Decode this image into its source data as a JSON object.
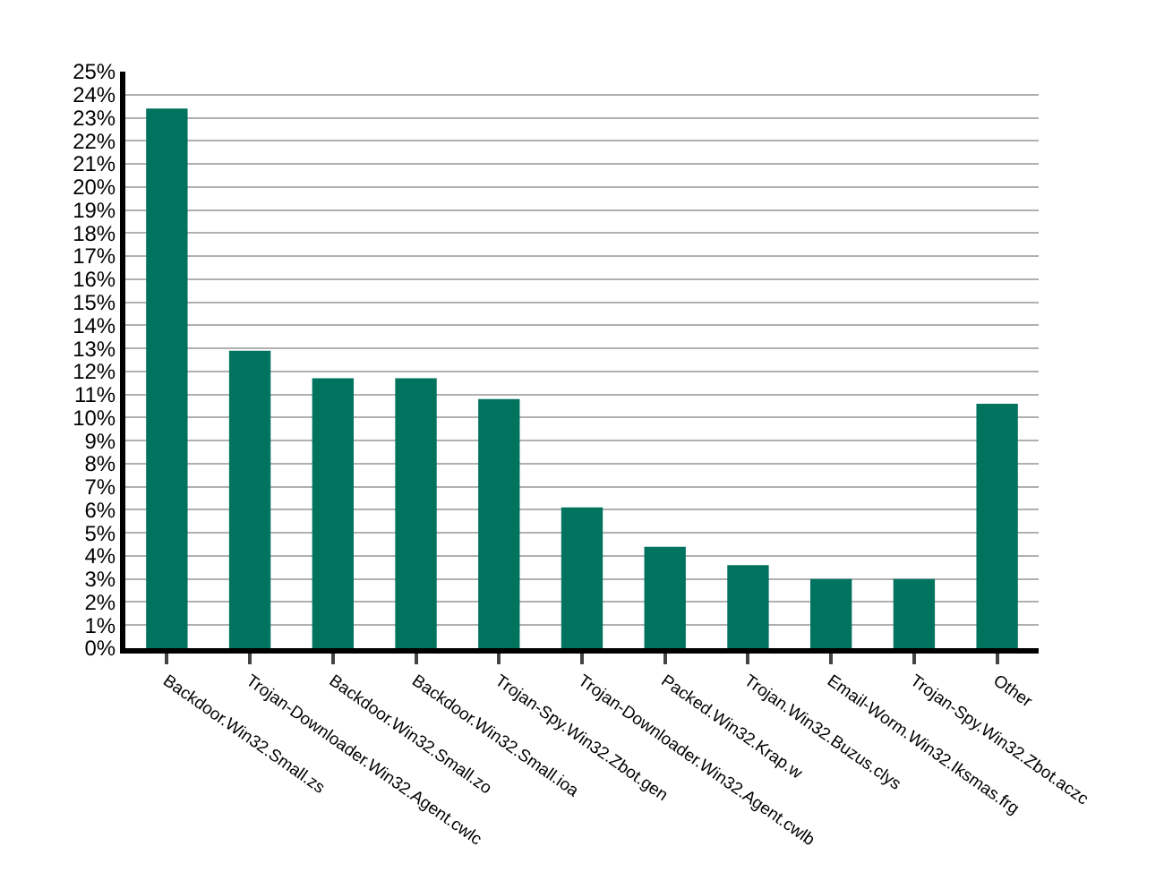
{
  "chart_data": {
    "type": "bar",
    "categories": [
      "Backdoor.Win32.Small.zs",
      "Trojan-Downloader.Win32.Agent.cwlc",
      "Backdoor.Win32.Small.zo",
      "Backdoor.Win32.Small.ioa",
      "Trojan-Spy.Win32.Zbot.gen",
      "Trojan-Downloader.Win32.Agent.cwlb",
      "Packed.Win32.Krap.w",
      "Trojan.Win32.Buzus.clys",
      "Email-Worm.Win32.Iksmas.frg",
      "Trojan-Spy.Win32.Zbot.aczc",
      "Other"
    ],
    "values": [
      23.4,
      12.9,
      11.7,
      11.7,
      10.8,
      6.1,
      4.4,
      3.6,
      3.0,
      3.0,
      10.6
    ],
    "color": "#00735f",
    "ylim": [
      0,
      25
    ],
    "yticks": [
      {
        "value": 0,
        "label": "0%"
      },
      {
        "value": 1,
        "label": "1%"
      },
      {
        "value": 2,
        "label": "2%"
      },
      {
        "value": 3,
        "label": "3%"
      },
      {
        "value": 4,
        "label": "4%"
      },
      {
        "value": 5,
        "label": "5%"
      },
      {
        "value": 6,
        "label": "6%"
      },
      {
        "value": 7,
        "label": "7%"
      },
      {
        "value": 8,
        "label": "8%"
      },
      {
        "value": 9,
        "label": "9%"
      },
      {
        "value": 10,
        "label": "10%"
      },
      {
        "value": 11,
        "label": "11%"
      },
      {
        "value": 12,
        "label": "12%"
      },
      {
        "value": 13,
        "label": "13%"
      },
      {
        "value": 14,
        "label": "14%"
      },
      {
        "value": 15,
        "label": "15%"
      },
      {
        "value": 16,
        "label": "16%"
      },
      {
        "value": 17,
        "label": "17%"
      },
      {
        "value": 18,
        "label": "18%"
      },
      {
        "value": 19,
        "label": "19%"
      },
      {
        "value": 20,
        "label": "20%"
      },
      {
        "value": 21,
        "label": "21%"
      },
      {
        "value": 22,
        "label": "22%"
      },
      {
        "value": 23,
        "label": "23%"
      },
      {
        "value": 24,
        "label": "24%"
      },
      {
        "value": 25,
        "label": "25%"
      }
    ],
    "grid": "y"
  }
}
